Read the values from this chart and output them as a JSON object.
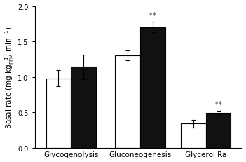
{
  "groups": [
    "Glycogenolysis",
    "Gluconeogenesis",
    "Glycerol Ra"
  ],
  "white_values": [
    0.98,
    1.3,
    0.34
  ],
  "black_values": [
    1.14,
    1.7,
    0.495
  ],
  "white_errors": [
    0.11,
    0.07,
    0.055
  ],
  "black_errors": [
    0.175,
    0.075,
    0.028
  ],
  "significance": [
    false,
    true,
    true
  ],
  "ylabel_line1": "Basal rate (mg kg",
  "ylabel_line2": " min",
  "ylim": [
    0,
    2.0
  ],
  "yticks": [
    0,
    0.5,
    1.0,
    1.5,
    2.0
  ],
  "bar_width": 0.38,
  "white_color": "#ffffff",
  "black_color": "#111111",
  "edge_color": "#000000",
  "sig_label": "**",
  "sig_fontsize": 9,
  "tick_fontsize": 7,
  "label_fontsize": 7.5,
  "group_label_fontsize": 7.5,
  "sig_color": "#666666"
}
